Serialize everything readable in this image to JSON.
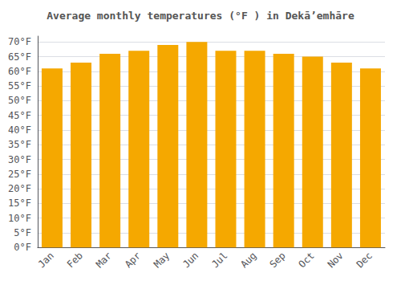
{
  "chart_data": {
    "type": "bar",
    "title": "Average monthly temperatures (°F ) in Dekāʼemhāre",
    "categories": [
      "Jan",
      "Feb",
      "Mar",
      "Apr",
      "May",
      "Jun",
      "Jul",
      "Aug",
      "Sep",
      "Oct",
      "Nov",
      "Dec"
    ],
    "values": [
      61,
      63,
      66,
      67,
      69,
      70,
      67,
      67,
      66,
      65,
      63,
      61
    ],
    "color": "#F5A800",
    "ylim": [
      0,
      72
    ],
    "yticks": [
      {
        "value": 0,
        "label": "0°F"
      },
      {
        "value": 5,
        "label": "5°F"
      },
      {
        "value": 10,
        "label": "10°F"
      },
      {
        "value": 15,
        "label": "15°F"
      },
      {
        "value": 20,
        "label": "20°F"
      },
      {
        "value": 25,
        "label": "25°F"
      },
      {
        "value": 30,
        "label": "30°F"
      },
      {
        "value": 35,
        "label": "35°F"
      },
      {
        "value": 40,
        "label": "40°F"
      },
      {
        "value": 45,
        "label": "45°F"
      },
      {
        "value": 50,
        "label": "50°F"
      },
      {
        "value": 55,
        "label": "55°F"
      },
      {
        "value": 60,
        "label": "60°F"
      },
      {
        "value": 65,
        "label": "65°F"
      },
      {
        "value": 70,
        "label": "70°F"
      }
    ],
    "grid": true
  }
}
